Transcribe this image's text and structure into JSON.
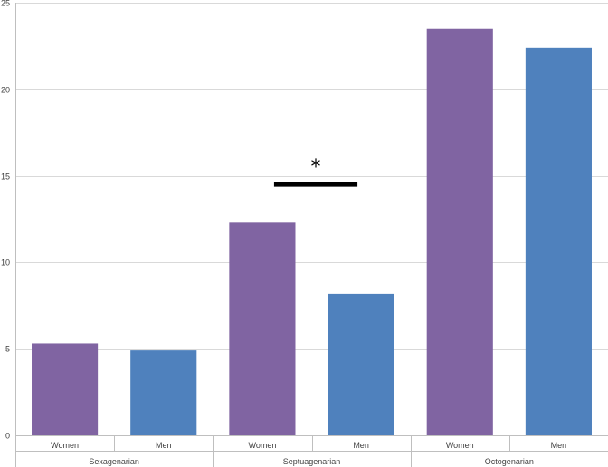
{
  "chart_data": {
    "type": "bar",
    "groups": [
      {
        "label": "Sexagenarian",
        "bars": [
          {
            "label": "Women",
            "value": 5.3
          },
          {
            "label": "Men",
            "value": 4.9
          }
        ]
      },
      {
        "label": "Septuagenarian",
        "bars": [
          {
            "label": "Women",
            "value": 12.3
          },
          {
            "label": "Men",
            "value": 8.2
          }
        ]
      },
      {
        "label": "Octogenarian",
        "bars": [
          {
            "label": "Women",
            "value": 23.5
          },
          {
            "label": "Men",
            "value": 22.4
          }
        ]
      }
    ],
    "ylim": [
      0,
      25
    ],
    "yticks": [
      0,
      5,
      10,
      15,
      20,
      25
    ],
    "grid": true,
    "colors": {
      "Women": "#8064a2",
      "Men": "#4f81bd"
    },
    "annotation": {
      "text": "*",
      "between_group": "Septuagenarian",
      "bracket_value": 14.5
    }
  }
}
